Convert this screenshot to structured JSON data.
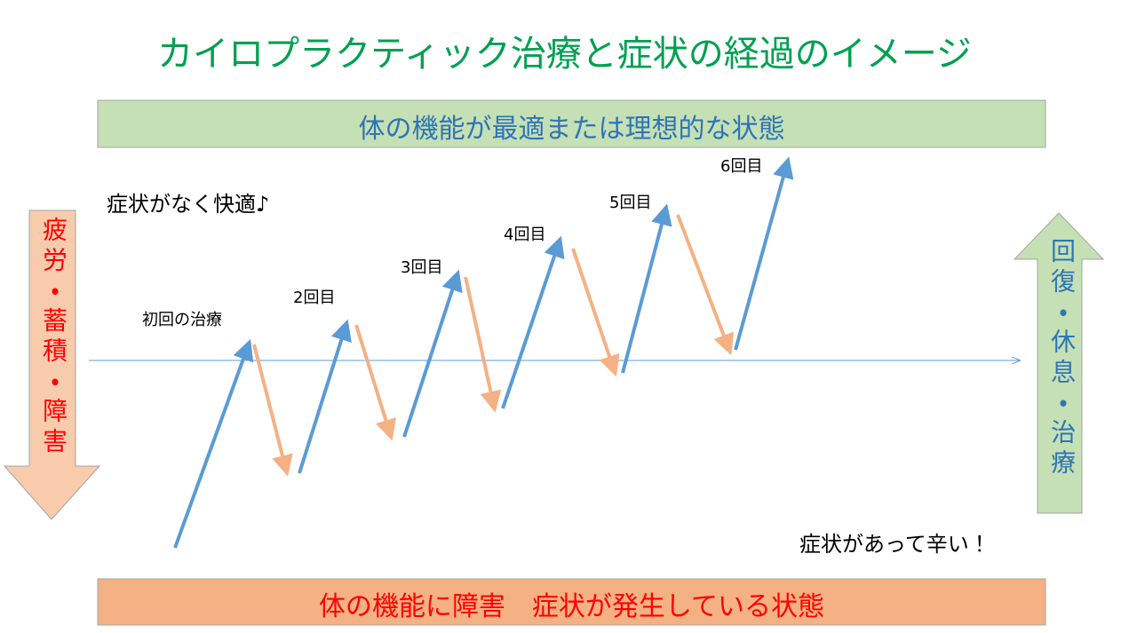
{
  "title": "カイロプラクティック治療と症状の経過のイメージ",
  "top_box": "体の機能が最適または理想的な状態",
  "bottom_box": "体の機能に障害　症状が発生している状態",
  "left_arrow": "疲労・蓄積・障害",
  "right_arrow": "回復・休息・治療",
  "step_labels": [
    "初回の治療",
    "2回目",
    "3回目",
    "4回目",
    "5回目",
    "6回目"
  ],
  "comfortable_note": "症状がなく快適♪",
  "painful_note": "症状があって辛い！"
}
